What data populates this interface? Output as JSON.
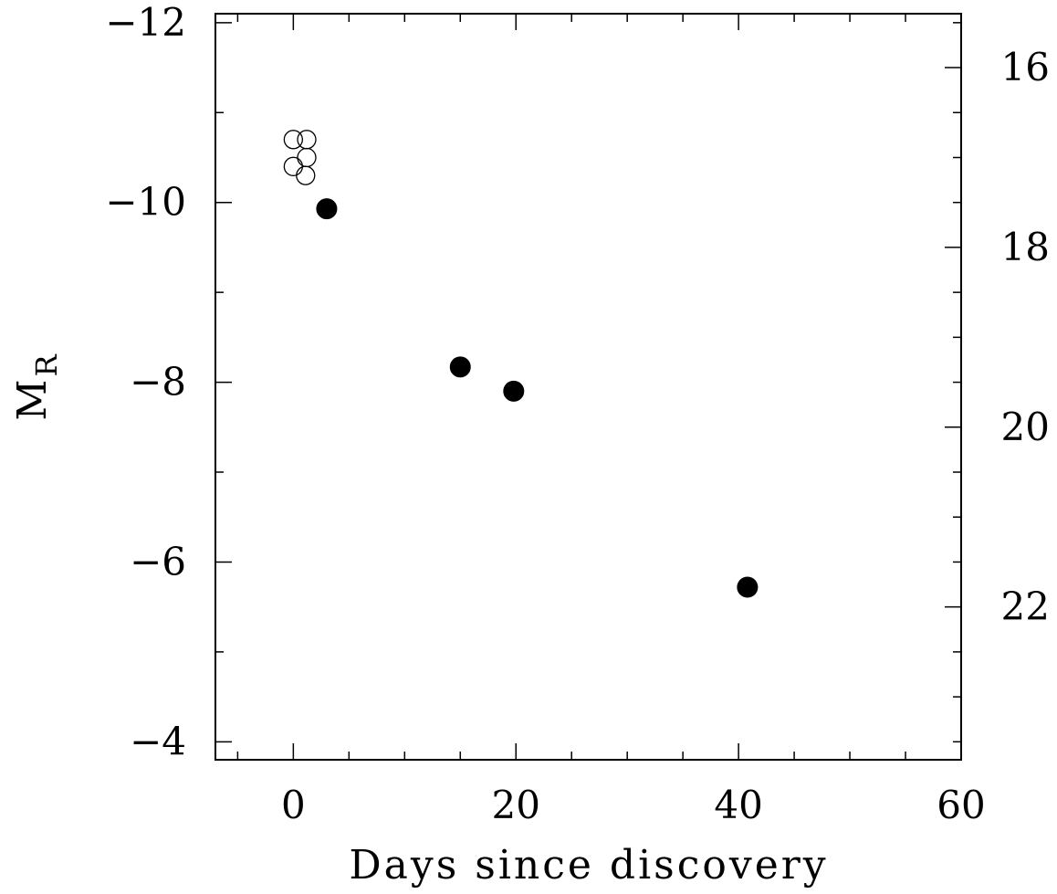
{
  "chart_data": {
    "type": "scatter",
    "title": "",
    "xlabel": "Days since discovery",
    "ylabel": {
      "main": "M",
      "subscript": "R"
    },
    "xlim": [
      -7,
      60
    ],
    "ylim": [
      -3.8,
      -12.1
    ],
    "y_axis_inverted": true,
    "xticks": [
      0,
      20,
      40,
      60
    ],
    "xtick_labels": [
      "0",
      "20",
      "40",
      "60"
    ],
    "yticks": [
      -12,
      -10,
      -8,
      -6,
      -4
    ],
    "ytick_labels": [
      "−12",
      "−10",
      "−8",
      "−6",
      "−4"
    ],
    "right_axis": {
      "label": "",
      "ticks": [
        16,
        18,
        20,
        22
      ],
      "tick_labels": [
        "16",
        "18",
        "20",
        "22"
      ],
      "offset_from_left": 27.5
    },
    "grid": false,
    "series": [
      {
        "marker": "open-circle",
        "color": "#000000",
        "x": [
          0.0,
          1.2,
          0.0,
          1.2,
          1.1
        ],
        "y": [
          -10.7,
          -10.7,
          -10.4,
          -10.5,
          -10.3
        ]
      },
      {
        "marker": "filled-circle",
        "color": "#000000",
        "x": [
          3.0,
          15.0,
          19.8,
          40.8
        ],
        "y": [
          -9.93,
          -8.17,
          -7.9,
          -5.72
        ]
      }
    ]
  }
}
